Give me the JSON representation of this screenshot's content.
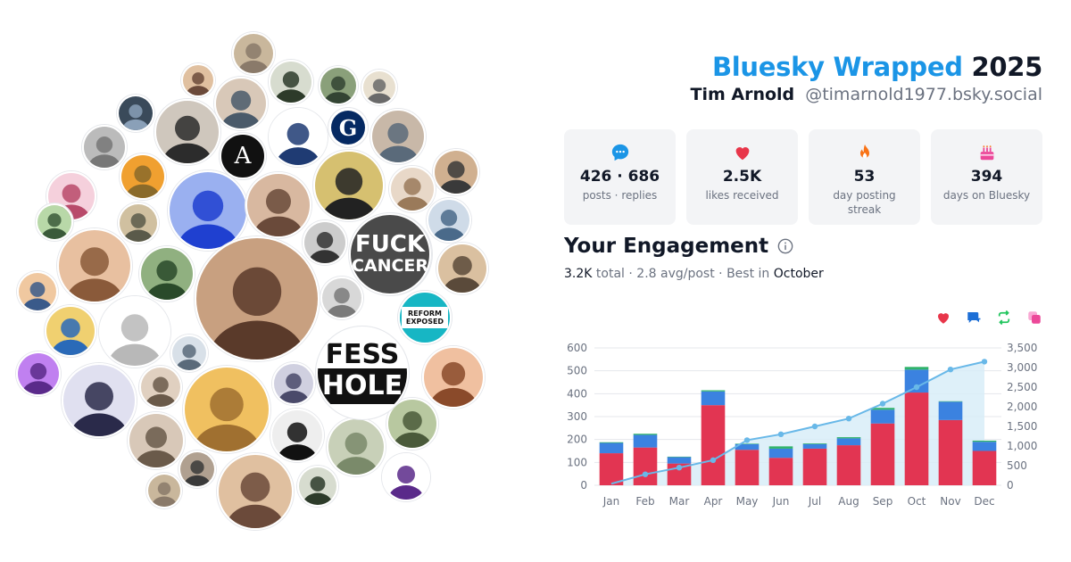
{
  "header": {
    "brand": "Bluesky Wrapped",
    "year": "2025",
    "display_name": "Tim Arnold",
    "handle": "@timarnold1977.bsky.social"
  },
  "stats": [
    {
      "value": "426 · 686",
      "label": "posts · replies",
      "icon": "speech-bubble-icon",
      "color": "#1b95e6"
    },
    {
      "value": "2.5K",
      "label": "likes received",
      "icon": "heart-icon",
      "color": "#e8364a"
    },
    {
      "value": "53",
      "label": "day posting streak",
      "icon": "flame-icon",
      "color": "#f97316"
    },
    {
      "value": "394",
      "label": "days on Bluesky",
      "icon": "cake-icon",
      "color": "#ec4899"
    }
  ],
  "engagement": {
    "title": "Your Engagement",
    "total": "3.2K",
    "total_label": "total",
    "avg": "2.8 avg/post",
    "best_label": "Best in",
    "best_month": "October"
  },
  "legend": [
    {
      "icon": "heart-icon",
      "color": "#e8364a"
    },
    {
      "icon": "reply-icon",
      "color": "#1d6fd6"
    },
    {
      "icon": "repost-icon",
      "color": "#22c55e"
    },
    {
      "icon": "quote-icon",
      "color": "#ec4899"
    }
  ],
  "chart_data": {
    "type": "bar",
    "categories": [
      "Jan",
      "Feb",
      "Mar",
      "Apr",
      "May",
      "Jun",
      "Jul",
      "Aug",
      "Sep",
      "Oct",
      "Nov",
      "Dec"
    ],
    "series": [
      {
        "values": [
          140,
          165,
          95,
          350,
          155,
          120,
          160,
          175,
          270,
          405,
          285,
          150
        ],
        "color": "#e23552"
      },
      {
        "values": [
          45,
          55,
          28,
          60,
          25,
          40,
          20,
          30,
          60,
          100,
          80,
          40
        ],
        "color": "#3b82e0"
      },
      {
        "values": [
          3,
          5,
          2,
          5,
          2,
          10,
          3,
          5,
          8,
          12,
          2,
          5
        ],
        "color": "#2fb36a"
      }
    ],
    "line": {
      "values": [
        40,
        280,
        450,
        640,
        1150,
        1300,
        1500,
        1700,
        2080,
        2500,
        2950,
        3150
      ],
      "color": "#68b8e8"
    },
    "ylim": [
      0,
      600
    ],
    "y_ticks": [
      "0",
      "100",
      "200",
      "300",
      "400",
      "500",
      "600"
    ],
    "y2lim": [
      0,
      3500
    ],
    "y2_ticks": [
      "0",
      "500",
      "1,000",
      "1,500",
      "2,000",
      "2,500",
      "3,000",
      "3,500"
    ],
    "grid": true
  },
  "avatars": [
    {
      "name": "avatar",
      "colors": [
        "#8a7a6a",
        "#c9b79c"
      ]
    },
    {
      "name": "avatar",
      "colors": [
        "#6b4a3a",
        "#e0c0a0"
      ]
    },
    {
      "name": "avatar",
      "colors": [
        "#2d3b2a",
        "#d7dccf"
      ]
    },
    {
      "name": "avatar",
      "colors": [
        "#334433",
        "#8aa07a"
      ]
    },
    {
      "name": "avatar",
      "colors": [
        "#6a6a6a",
        "#e8e0d0"
      ]
    },
    {
      "name": "avatar",
      "colors": [
        "#4a5a6a",
        "#d8c8b8"
      ]
    },
    {
      "name": "avatar",
      "colors": [
        "#8aa0b8",
        "#3a4a5a"
      ]
    },
    {
      "name": "avatar",
      "colors": [
        "#2c2c2c",
        "#cfc7bd"
      ]
    },
    {
      "name": "avatar",
      "colors": [
        "#1f3b73",
        "#ffffff"
      ]
    },
    {
      "name": "avatar",
      "colors": [
        "#6b5a3a",
        "#caa"
      ]
    },
    {
      "name": "avatar",
      "colors": [
        "#5a6a7a",
        "#c8b8a8"
      ]
    },
    {
      "name": "avatar",
      "colors": [
        "#777",
        "#bbb"
      ]
    },
    {
      "name": "avatar",
      "colors": [
        "#8a6a2a",
        "#f0a030"
      ]
    },
    {
      "name": "avatar",
      "colors": [
        "#111",
        "#fff"
      ]
    },
    {
      "name": "avatar",
      "colors": [
        "#3a3a3a",
        "#d0b090"
      ]
    },
    {
      "name": "avatar",
      "colors": [
        "#b84a6a",
        "#f5d0dc"
      ]
    },
    {
      "name": "avatar",
      "colors": [
        "#1f40d0",
        "#9ab0f0"
      ]
    },
    {
      "name": "avatar",
      "colors": [
        "#6a4a3a",
        "#d8b8a0"
      ]
    },
    {
      "name": "avatar",
      "colors": [
        "#222",
        "#d6c070"
      ]
    },
    {
      "name": "avatar",
      "colors": [
        "#9a7a5a",
        "#e8d8c8"
      ]
    },
    {
      "name": "avatar",
      "colors": [
        "#4a6a8a",
        "#cfdbe8"
      ]
    },
    {
      "name": "avatar",
      "colors": [
        "#3a5a3a",
        "#b8d8a8"
      ]
    },
    {
      "name": "avatar",
      "colors": [
        "#5a5a4a",
        "#d0c0a0"
      ]
    },
    {
      "name": "avatar",
      "colors": [
        "#333",
        "#ccc"
      ]
    },
    {
      "name": "avatar",
      "colors": [
        "#8a5a3a",
        "#e8c0a0"
      ]
    },
    {
      "name": "avatar",
      "colors": [
        "#2a4a2a",
        "#90b080"
      ]
    },
    {
      "name": "avatar",
      "colors": [
        "#5a3a2a",
        "#c8a080"
      ]
    },
    {
      "name": "avatar",
      "colors": [
        "#4a4a4a",
        "#e0e0e0"
      ]
    },
    {
      "name": "avatar",
      "colors": [
        "#5a4a3a",
        "#dac0a0"
      ]
    },
    {
      "name": "avatar",
      "colors": [
        "#3a5a8a",
        "#f0c8a0"
      ]
    },
    {
      "name": "avatar",
      "colors": [
        "#7a7a7a",
        "#d8d8d8"
      ]
    },
    {
      "name": "avatar",
      "colors": [
        "#4a6a2a",
        "#a8c880"
      ]
    },
    {
      "name": "avatar",
      "colors": [
        "#2a6ab8",
        "#f0d070"
      ]
    },
    {
      "name": "avatar",
      "colors": [
        "#b8b8b8",
        "#ffffff"
      ]
    },
    {
      "name": "avatar",
      "colors": [
        "#5a6a7a",
        "#d8e0e8"
      ]
    },
    {
      "name": "avatar",
      "colors": [
        "#8a4a2a",
        "#f0c0a0"
      ]
    },
    {
      "name": "avatar",
      "colors": [
        "#5a2a8a",
        "#c080f0"
      ]
    },
    {
      "name": "avatar",
      "colors": [
        "#6a5a4a",
        "#e0d0c0"
      ]
    },
    {
      "name": "avatar",
      "colors": [
        "#4a4a6a",
        "#d0d0e0"
      ]
    },
    {
      "name": "avatar",
      "colors": [
        "#2a2a4a",
        "#e0e0f0"
      ]
    },
    {
      "name": "avatar",
      "colors": [
        "#a07030",
        "#f0c060"
      ]
    },
    {
      "name": "avatar",
      "colors": [
        "#6a4a4a",
        "#e0b0a0"
      ]
    },
    {
      "name": "avatar",
      "colors": [
        "#4a5a3a",
        "#b8c8a0"
      ]
    },
    {
      "name": "avatar",
      "colors": [
        "#6a5a4a",
        "#d8c8b8"
      ]
    },
    {
      "name": "avatar",
      "colors": [
        "#111",
        "#eee"
      ]
    },
    {
      "name": "avatar",
      "colors": [
        "#7a8a6a",
        "#c8d0b8"
      ]
    },
    {
      "name": "avatar",
      "colors": [
        "#5a2a8a",
        "#ffffff"
      ]
    },
    {
      "name": "avatar",
      "colors": [
        "#3a3a3a",
        "#b0a090"
      ]
    }
  ],
  "special_avatars": {
    "fuck_cancer": [
      "FUCK",
      "CANCER"
    ],
    "fess_hole": [
      "FESS",
      "HOLE"
    ],
    "reform": [
      "REFORM",
      "EXPOSED"
    ],
    "a_logo": "A",
    "g_logo": "G"
  }
}
